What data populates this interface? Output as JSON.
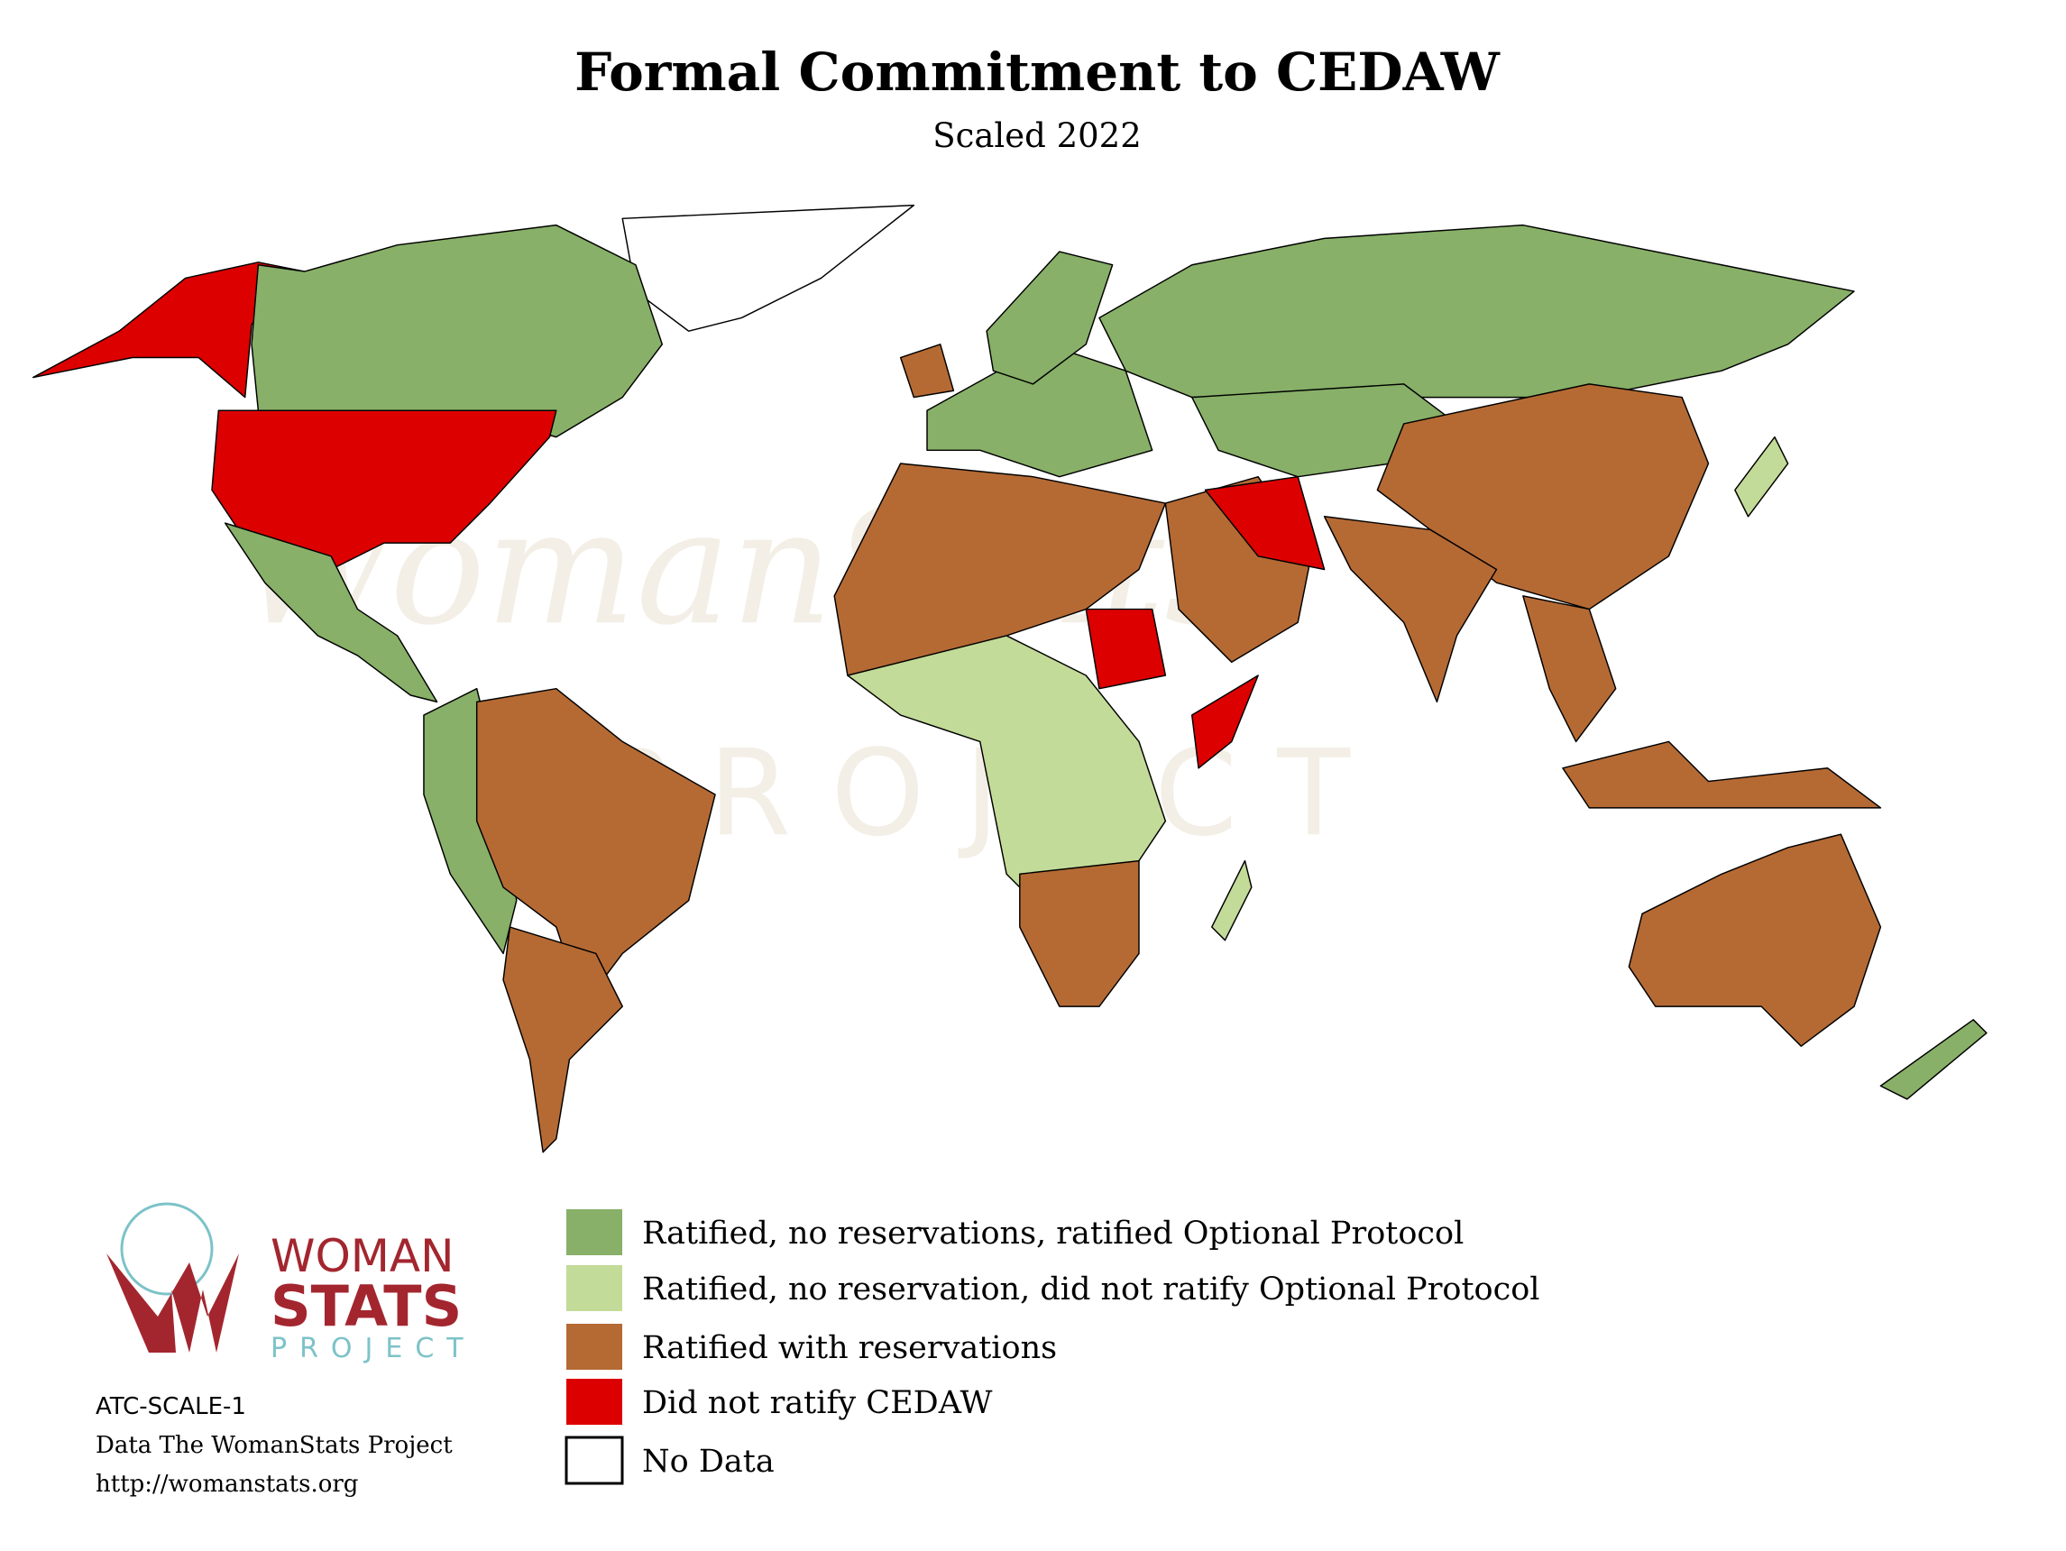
{
  "header": {
    "title": "Formal Commitment to CEDAW",
    "subtitle": "Scaled 2022"
  },
  "legend": [
    {
      "label": "Ratified, no reservations, ratified Optional Protocol",
      "color": "#88b068"
    },
    {
      "label": "Ratified, no reservation, did not ratify Optional Protocol",
      "color": "#c3db98"
    },
    {
      "label": "Ratified with reservations",
      "color": "#b56a34"
    },
    {
      "label": "Did not ratify CEDAW",
      "color": "#dd0000"
    },
    {
      "label": "No Data",
      "color": "#ffffff"
    }
  ],
  "watermark": {
    "name": "WomanStats",
    "sub": "PROJECT"
  },
  "logo": {
    "line1": "WOMAN",
    "line2": "STATS",
    "line3": "PROJECT"
  },
  "footer": {
    "code": "ATC-SCALE-1",
    "source": "Data The WomanStats Project",
    "url": "http://womanstats.org"
  }
}
